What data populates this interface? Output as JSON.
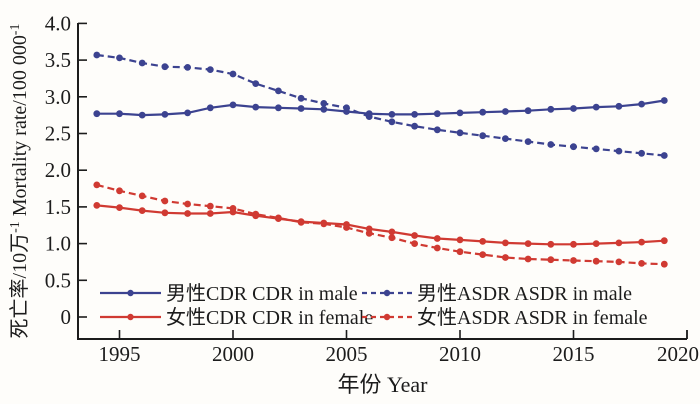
{
  "chart_data": {
    "type": "line",
    "title": "",
    "xlabel": "年份 Year",
    "ylabel_text": "死亡率/10万⁻¹ Mortality rate/100 000⁻¹",
    "ylabel_parts": {
      "cn_base": "死亡率/10万",
      "cn_sup": "-1",
      "en_base": " Mortality rate/100 000",
      "en_sup": "-1"
    },
    "xlim": [
      1993.2,
      2020.6
    ],
    "ylim": [
      0,
      4.0
    ],
    "x_ticks": [
      1995,
      2000,
      2005,
      2010,
      2015,
      2020
    ],
    "x_tick_labels": [
      "1995",
      "2000",
      "2005",
      "2010",
      "2015",
      "2020"
    ],
    "y_ticks": [
      0,
      0.5,
      1.0,
      1.5,
      2.0,
      2.5,
      3.0,
      3.5,
      4.0
    ],
    "y_tick_labels": [
      "0",
      "0.5",
      "1.0",
      "1.5",
      "2.0",
      "2.5",
      "3.0",
      "3.5",
      "4.0"
    ],
    "grid": false,
    "legend_position": "inside-bottom-left",
    "colors": {
      "male": "#3c4390",
      "female": "#d03a32",
      "ink": "#1c1c1c"
    },
    "x": [
      1994,
      1995,
      1996,
      1997,
      1998,
      1999,
      2000,
      2001,
      2002,
      2003,
      2004,
      2005,
      2006,
      2007,
      2008,
      2009,
      2010,
      2011,
      2012,
      2013,
      2014,
      2015,
      2016,
      2017,
      2018,
      2019
    ],
    "series": [
      {
        "key": "cdr-male",
        "name": "男性CDR CDR in male",
        "color": "#3c4390",
        "style": "solid",
        "values": [
          2.77,
          2.77,
          2.75,
          2.76,
          2.78,
          2.85,
          2.89,
          2.86,
          2.85,
          2.84,
          2.83,
          2.8,
          2.77,
          2.76,
          2.76,
          2.77,
          2.78,
          2.79,
          2.8,
          2.81,
          2.83,
          2.84,
          2.86,
          2.87,
          2.9,
          2.95
        ]
      },
      {
        "key": "asdr-male",
        "name": "男性ASDR ASDR in male",
        "color": "#3c4390",
        "style": "dashed",
        "values": [
          3.57,
          3.53,
          3.46,
          3.41,
          3.4,
          3.37,
          3.31,
          3.18,
          3.08,
          2.98,
          2.91,
          2.85,
          2.73,
          2.66,
          2.6,
          2.55,
          2.51,
          2.47,
          2.43,
          2.39,
          2.35,
          2.32,
          2.29,
          2.26,
          2.23,
          2.2
        ]
      },
      {
        "key": "cdr-female",
        "name": "女性CDR CDR in female",
        "color": "#d03a32",
        "style": "solid",
        "values": [
          1.52,
          1.49,
          1.45,
          1.42,
          1.41,
          1.41,
          1.43,
          1.38,
          1.34,
          1.3,
          1.28,
          1.26,
          1.2,
          1.16,
          1.11,
          1.07,
          1.05,
          1.03,
          1.01,
          1.0,
          0.99,
          0.99,
          1.0,
          1.01,
          1.02,
          1.04
        ]
      },
      {
        "key": "asdr-female",
        "name": "女性ASDR ASDR in female",
        "color": "#d03a32",
        "style": "dashed",
        "values": [
          1.8,
          1.72,
          1.65,
          1.58,
          1.54,
          1.51,
          1.48,
          1.4,
          1.35,
          1.29,
          1.27,
          1.22,
          1.14,
          1.08,
          1.0,
          0.94,
          0.89,
          0.85,
          0.81,
          0.79,
          0.78,
          0.77,
          0.76,
          0.75,
          0.73,
          0.72
        ]
      }
    ],
    "legend_rows": [
      [
        0,
        1
      ],
      [
        2,
        3
      ]
    ]
  }
}
